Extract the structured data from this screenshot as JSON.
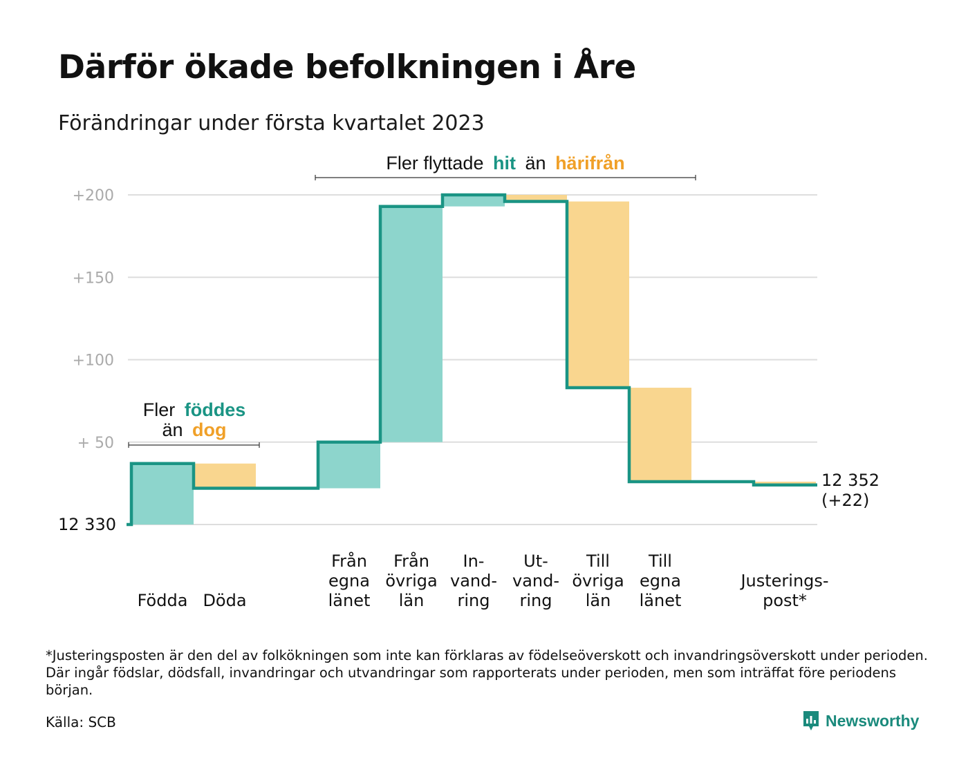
{
  "header": {
    "title": "Därför ökade befolkningen i Åre",
    "subtitle": "Förändringar under första kvartalet 2023"
  },
  "colors": {
    "inflow": "#8dd5cc",
    "outflow": "#f9d68f",
    "line": "#1a9484",
    "accent_teal": "#1a9484",
    "accent_orange": "#f0a028",
    "grid": "#dddddd",
    "tick": "#aaaaaa"
  },
  "annotations": {
    "births_line1": "Fler",
    "births_hl1": "föddes",
    "births_line2a": "än",
    "births_hl2": "dog",
    "migration_a": "Fler flyttade",
    "migration_hl1": "hit",
    "migration_b": "än",
    "migration_hl2": "härifrån"
  },
  "chart_data": {
    "type": "waterfall",
    "start_label": "12 330",
    "end_label_line1": "12 352",
    "end_label_line2": "(+22)",
    "yticks": [
      {
        "value": 200,
        "label": "+200"
      },
      {
        "value": 150,
        "label": "+150"
      },
      {
        "value": 100,
        "label": "+100"
      },
      {
        "value": 50,
        "label": "+ 50"
      }
    ],
    "ylim": [
      0,
      200
    ],
    "grid": true,
    "steps": [
      {
        "label": [
          "Födda"
        ],
        "value": 37,
        "kind": "inflow"
      },
      {
        "label": [
          "Döda"
        ],
        "value": -15,
        "kind": "outflow"
      },
      {
        "label": [
          "Från",
          "egna",
          "länet"
        ],
        "value": 28,
        "kind": "inflow"
      },
      {
        "label": [
          "Från",
          "övriga",
          "län"
        ],
        "value": 143,
        "kind": "inflow"
      },
      {
        "label": [
          "In-",
          "vand-",
          "ring"
        ],
        "value": 7,
        "kind": "inflow"
      },
      {
        "label": [
          "Ut-",
          "vand-",
          "ring"
        ],
        "value": -4,
        "kind": "outflow"
      },
      {
        "label": [
          "Till",
          "övriga",
          "län"
        ],
        "value": -113,
        "kind": "outflow"
      },
      {
        "label": [
          "Till",
          "egna",
          "länet"
        ],
        "value": -57,
        "kind": "outflow"
      },
      {
        "label": [
          "Justerings-",
          "post*"
        ],
        "value": -2,
        "kind": "outflow"
      }
    ]
  },
  "footer": {
    "footnote": "*Justeringsposten är den del av folkökningen som inte kan förklaras av födelseöverskott och invandringsöverskott under perioden. Där ingår födslar, dödsfall, invandringar och utvandringar som rapporterats under perioden, men som inträffat före periodens början.",
    "source": "Källa: SCB",
    "brand": "Newsworthy"
  }
}
